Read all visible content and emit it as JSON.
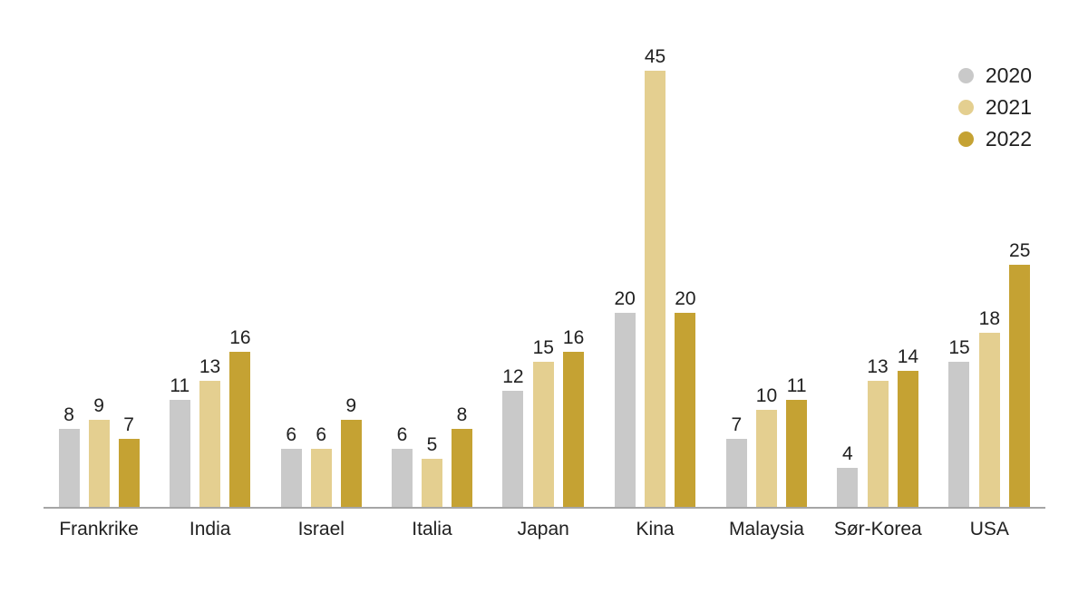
{
  "colors": {
    "background": "#ffffff",
    "axis_line": "#a6a6a6",
    "label_text": "#212121"
  },
  "chart_data": {
    "type": "bar",
    "title": "",
    "xlabel": "",
    "ylabel": "",
    "categories": [
      "Frankrike",
      "India",
      "Israel",
      "Italia",
      "Japan",
      "Kina",
      "Malaysia",
      "Sør-Korea",
      "USA"
    ],
    "series": [
      {
        "name": "2020",
        "color": "#c9c9c9",
        "values": [
          8,
          11,
          6,
          6,
          12,
          20,
          7,
          4,
          15
        ]
      },
      {
        "name": "2021",
        "color": "#e4cf90",
        "values": [
          9,
          13,
          6,
          5,
          15,
          45,
          10,
          13,
          18
        ]
      },
      {
        "name": "2022",
        "color": "#c5a233",
        "values": [
          7,
          16,
          9,
          8,
          16,
          20,
          11,
          14,
          25
        ]
      }
    ],
    "ylim": [
      0,
      45
    ],
    "grid": false,
    "axis_ticks_visible": false,
    "data_labels": true,
    "legend_position": "top-right"
  }
}
